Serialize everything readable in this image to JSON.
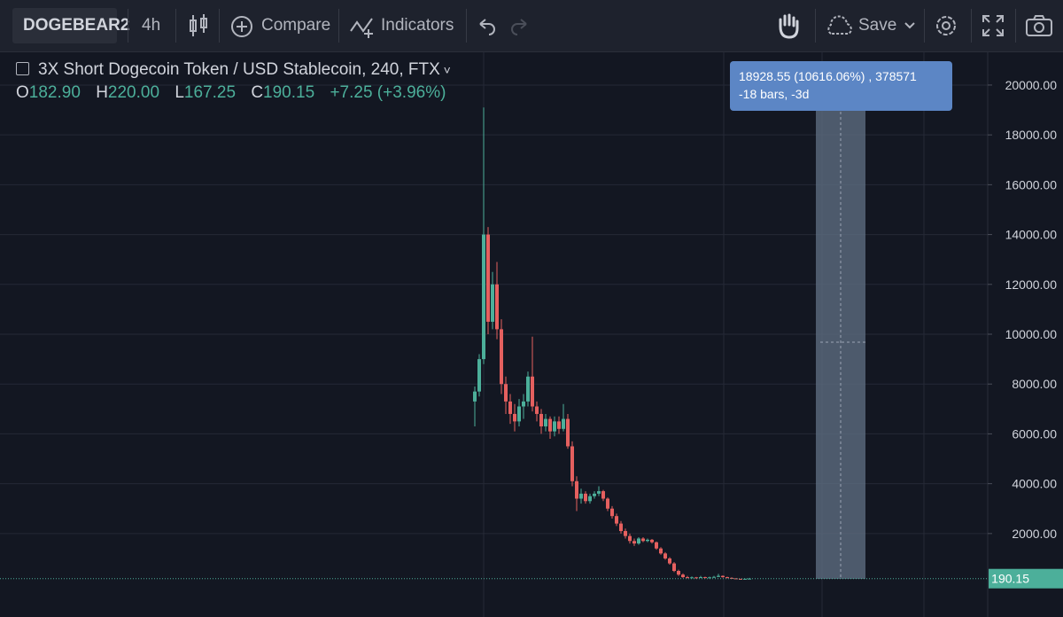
{
  "toolbar": {
    "symbol": "DOGEBEAR2",
    "interval": "4h",
    "compare": "Compare",
    "indicators": "Indicators",
    "save": "Save"
  },
  "legend": {
    "title": "3X Short Dogecoin Token / USD Stablecoin, 240, FTX",
    "open_label": "O",
    "open": "182.90",
    "high_label": "H",
    "high": "220.00",
    "low_label": "L",
    "low": "167.25",
    "close_label": "C",
    "close": "190.15",
    "change": "+7.25 (+3.96%)"
  },
  "measure": {
    "line1": "18928.55 (10616.06%) , 378571",
    "line2": "-18 bars, -3d"
  },
  "chart_data": {
    "type": "candlestick",
    "up_color": "#4caf9a",
    "down_color": "#e5605f",
    "ylim": [
      -1350,
      21350
    ],
    "yticks": [
      {
        "value": 2000,
        "label": "2000.00"
      },
      {
        "value": 4000,
        "label": "4000.00"
      },
      {
        "value": 6000,
        "label": "6000.00"
      },
      {
        "value": 8000,
        "label": "8000.00"
      },
      {
        "value": 10000,
        "label": "10000.00"
      },
      {
        "value": 12000,
        "label": "12000.00"
      },
      {
        "value": 14000,
        "label": "14000.00"
      },
      {
        "value": 16000,
        "label": "16000.00"
      },
      {
        "value": 18000,
        "label": "18000.00"
      },
      {
        "value": 20000,
        "label": "20000.00"
      }
    ],
    "grid": true,
    "last_price": 190.15,
    "candles": [
      [
        7300,
        7900,
        6300,
        7700
      ],
      [
        7700,
        9200,
        7500,
        9000
      ],
      [
        9000,
        19100,
        8800,
        14000
      ],
      [
        14000,
        14300,
        10000,
        10500
      ],
      [
        10500,
        12500,
        10200,
        12000
      ],
      [
        12000,
        12900,
        9800,
        10200
      ],
      [
        10200,
        10600,
        7600,
        8000
      ],
      [
        8000,
        8300,
        6800,
        7300
      ],
      [
        7300,
        7600,
        6400,
        6800
      ],
      [
        6800,
        7200,
        6100,
        6500
      ],
      [
        6500,
        7400,
        6300,
        7100
      ],
      [
        7100,
        7600,
        6600,
        7300
      ],
      [
        7300,
        8500,
        7100,
        8300
      ],
      [
        8300,
        9900,
        6900,
        7100
      ],
      [
        7100,
        7300,
        6500,
        6800
      ],
      [
        6800,
        7000,
        6000,
        6300
      ],
      [
        6300,
        6800,
        6100,
        6600
      ],
      [
        6600,
        6700,
        5800,
        6100
      ],
      [
        6100,
        6700,
        5900,
        6500
      ],
      [
        6500,
        6700,
        6000,
        6200
      ],
      [
        6200,
        7200,
        6100,
        6600
      ],
      [
        6600,
        6800,
        5400,
        5500
      ],
      [
        5500,
        5700,
        3900,
        4100
      ],
      [
        4100,
        4300,
        2900,
        3400
      ],
      [
        3400,
        3800,
        3200,
        3600
      ],
      [
        3600,
        3700,
        3200,
        3300
      ],
      [
        3300,
        3600,
        3200,
        3500
      ],
      [
        3500,
        3700,
        3400,
        3600
      ],
      [
        3600,
        3900,
        3500,
        3700
      ],
      [
        3700,
        3750,
        3300,
        3400
      ],
      [
        3400,
        3450,
        2900,
        3000
      ],
      [
        3000,
        3100,
        2600,
        2700
      ],
      [
        2700,
        2800,
        2300,
        2400
      ],
      [
        2400,
        2500,
        2000,
        2100
      ],
      [
        2100,
        2200,
        1800,
        1900
      ],
      [
        1900,
        2000,
        1600,
        1700
      ],
      [
        1700,
        1800,
        1500,
        1600
      ],
      [
        1600,
        1850,
        1550,
        1800
      ],
      [
        1800,
        1850,
        1650,
        1700
      ],
      [
        1700,
        1800,
        1650,
        1750
      ],
      [
        1750,
        1780,
        1600,
        1650
      ],
      [
        1650,
        1680,
        1350,
        1400
      ],
      [
        1400,
        1450,
        1150,
        1200
      ],
      [
        1200,
        1250,
        950,
        1000
      ],
      [
        1000,
        1050,
        750,
        800
      ],
      [
        800,
        850,
        450,
        500
      ],
      [
        500,
        550,
        300,
        350
      ],
      [
        350,
        400,
        220,
        250
      ],
      [
        250,
        300,
        200,
        230
      ],
      [
        230,
        280,
        210,
        240
      ],
      [
        240,
        260,
        190,
        220
      ],
      [
        220,
        300,
        210,
        250
      ],
      [
        250,
        270,
        200,
        230
      ],
      [
        230,
        270,
        210,
        240
      ],
      [
        240,
        300,
        230,
        260
      ],
      [
        260,
        380,
        250,
        300
      ],
      [
        300,
        320,
        230,
        250
      ],
      [
        250,
        270,
        200,
        220
      ],
      [
        220,
        240,
        180,
        200
      ],
      [
        200,
        210,
        170,
        180
      ],
      [
        180,
        190,
        150,
        160
      ],
      [
        160,
        190,
        150,
        183
      ],
      [
        182.9,
        220,
        167.25,
        190.15
      ]
    ]
  }
}
